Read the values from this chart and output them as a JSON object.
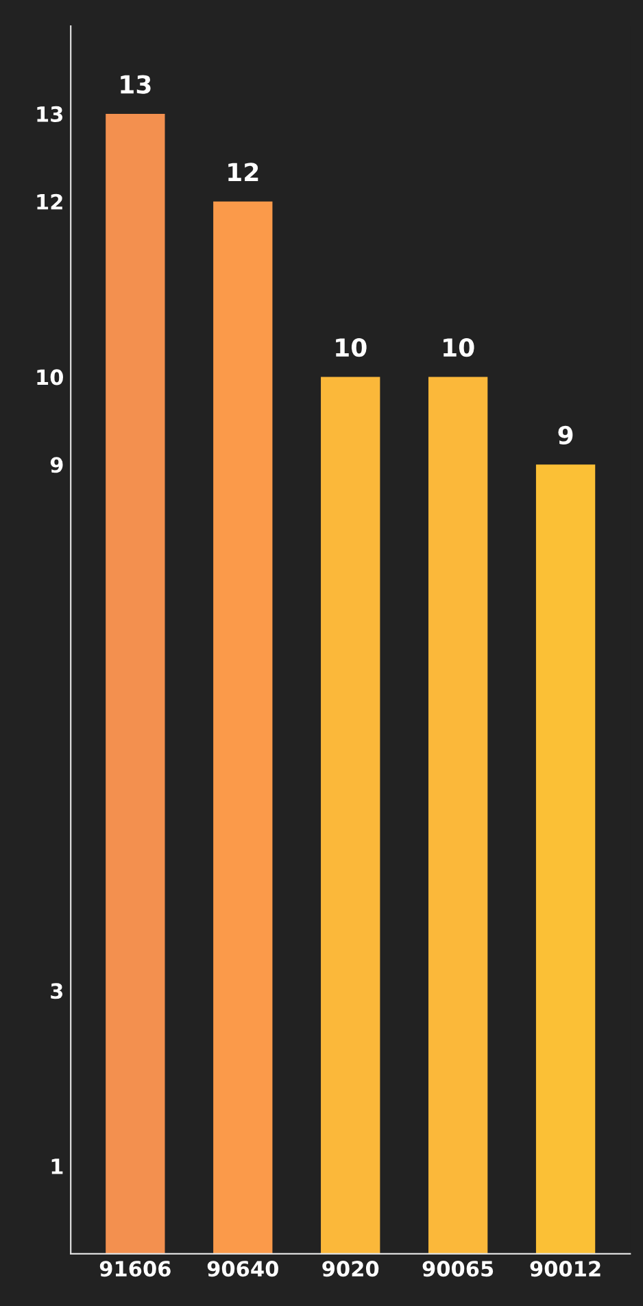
{
  "chart_data": {
    "type": "bar",
    "categories": [
      "91606",
      "90640",
      "9020",
      "90065",
      "90012"
    ],
    "values": [
      13,
      12,
      10,
      10,
      9
    ],
    "colors": [
      "#f3904f",
      "#fb9a4a",
      "#fbb83a",
      "#fbb83a",
      "#fbc036"
    ],
    "ylim": [
      0,
      14
    ],
    "yticks": [
      1,
      3,
      9,
      10,
      12,
      13
    ],
    "data_labels": true,
    "grid": false
  }
}
